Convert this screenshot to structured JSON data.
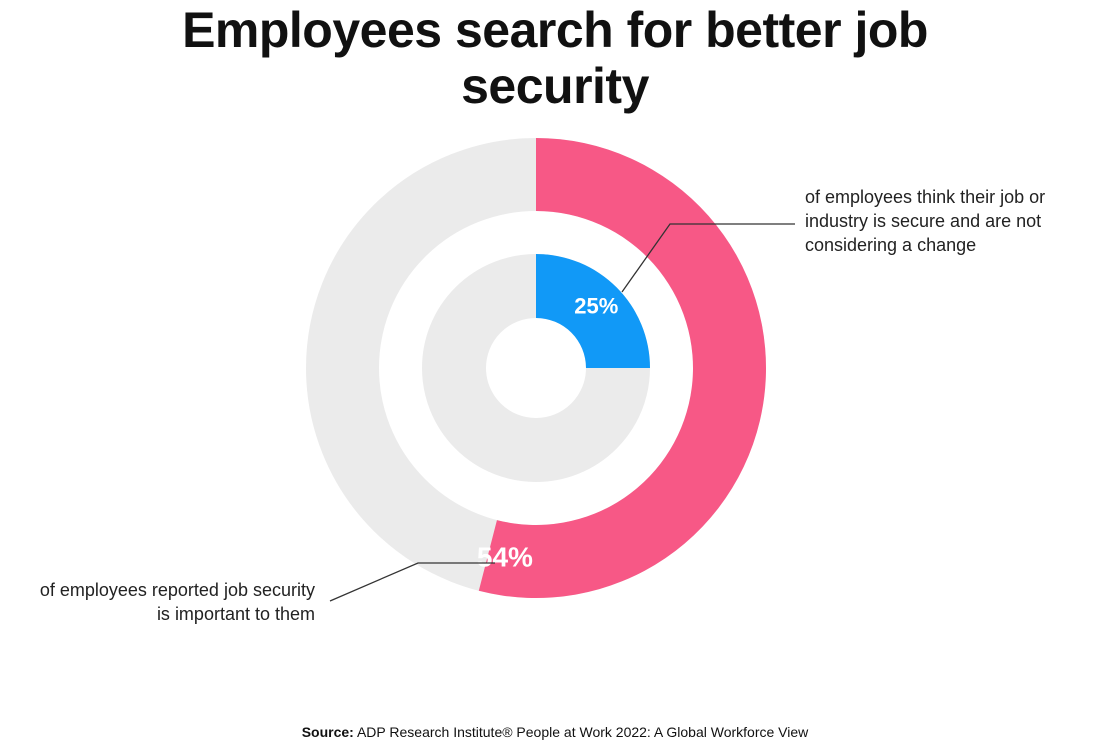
{
  "chart_data": {
    "type": "donut",
    "title": "Employees search for better job security",
    "rings": [
      {
        "values": [
          54
        ],
        "value_labels": [
          "54%"
        ],
        "color": "#f75886",
        "annotation": "of employees reported job security is important to them"
      },
      {
        "values": [
          25
        ],
        "value_labels": [
          "25%"
        ],
        "color": "#1199f7",
        "annotation": "of employees think their job or industry is secure and are not considering a change"
      }
    ],
    "track_color": "#ebebeb",
    "source_label": "Source:",
    "source": "ADP Research Institute® People at Work 2022: A Global Workforce View"
  }
}
